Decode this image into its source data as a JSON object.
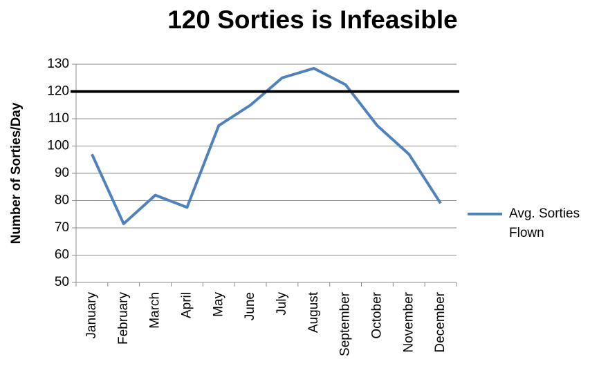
{
  "chart_data": {
    "type": "line",
    "title": "120 Sorties is Infeasible",
    "y_label": "Number of Sorties/Day",
    "categories": [
      "January",
      "February",
      "March",
      "April",
      "May",
      "June",
      "July",
      "August",
      "September",
      "October",
      "November",
      "December"
    ],
    "series": [
      {
        "name": "Avg. Sorties Flown",
        "color": "#4f81bd",
        "values": [
          97,
          71.5,
          82,
          77.5,
          107.5,
          115,
          125,
          128.5,
          122.5,
          107.5,
          97,
          79
        ]
      }
    ],
    "reference_line": {
      "value": 120,
      "color": "#000000"
    },
    "ylim": [
      50,
      130
    ],
    "yticks": [
      50,
      60,
      70,
      80,
      90,
      100,
      110,
      120,
      130
    ],
    "grid": true,
    "legend": "right"
  }
}
